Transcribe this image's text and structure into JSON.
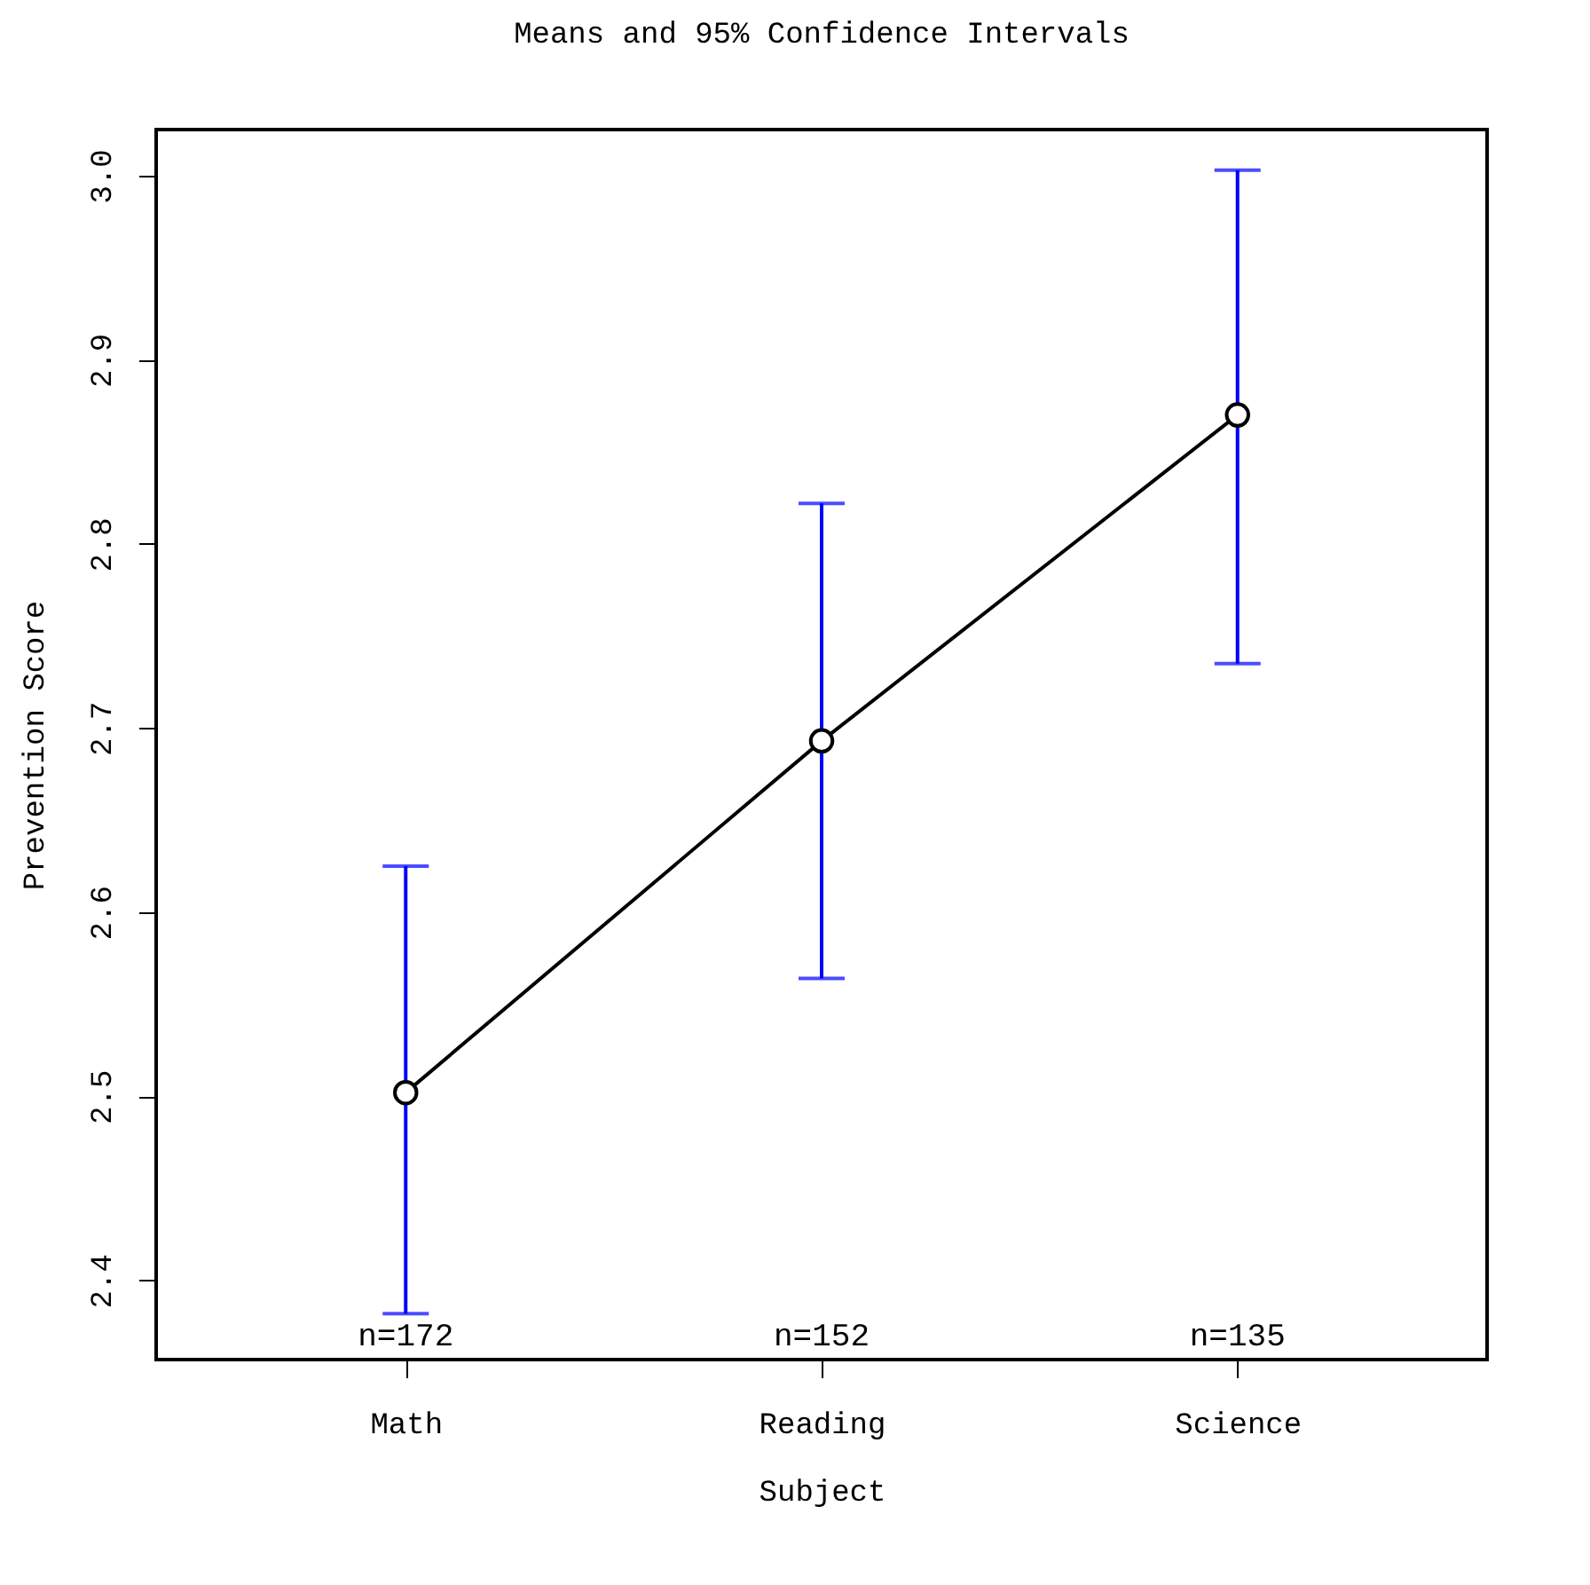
{
  "chart_data": {
    "type": "line",
    "title": "Means and 95% Confidence Intervals",
    "xlabel": "Subject",
    "ylabel": "Prevention Score",
    "categories": [
      "Math",
      "Reading",
      "Science"
    ],
    "series": [
      {
        "color": "#000000",
        "values": [
          2.502,
          2.693,
          2.87
        ],
        "errors": [
          [
            2.382,
            2.625
          ],
          [
            2.564,
            2.822
          ],
          [
            2.735,
            3.003
          ]
        ]
      }
    ],
    "ylim": [
      2.357,
      3.025
    ],
    "yticks": [
      2.4,
      2.5,
      2.6,
      2.7,
      2.8,
      2.9,
      {
        "value": 3,
        "label": "3.0"
      }
    ],
    "grid": false,
    "marker": "circle",
    "line_style": "solid",
    "annotations": [
      "n=172",
      "n=152",
      "n=135"
    ]
  }
}
